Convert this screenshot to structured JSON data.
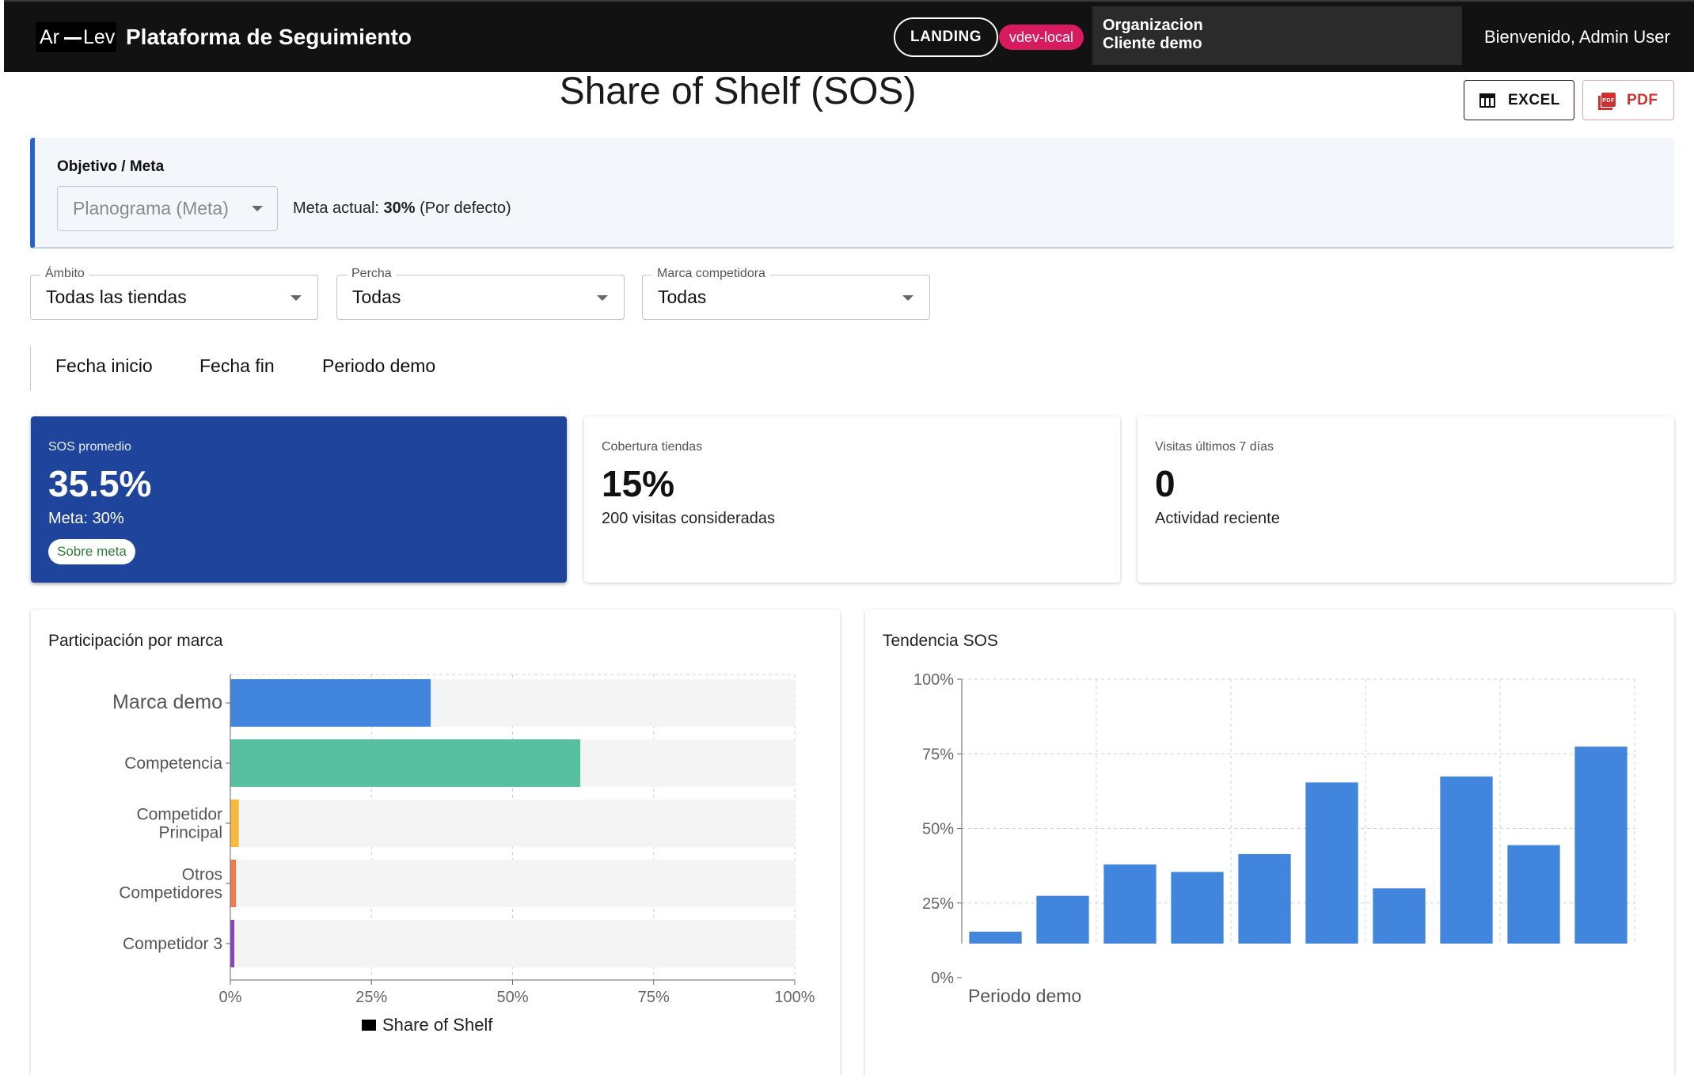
{
  "header": {
    "logo_left": "Ar",
    "logo_right": "Lev",
    "app_title": "Plataforma de Seguimiento",
    "landing_label": "LANDING",
    "env_label": "vdev-local",
    "org_line1": "Organizacion",
    "org_line2": "Cliente demo",
    "welcome": "Bienvenido, Admin User"
  },
  "page": {
    "title": "Share of Shelf (SOS)",
    "excel_label": "EXCEL",
    "pdf_label": "PDF"
  },
  "objective": {
    "label": "Objetivo / Meta",
    "select_value": "Planograma (Meta)",
    "meta_prefix": "Meta actual: ",
    "meta_value": "30%",
    "meta_suffix": " (Por defecto)"
  },
  "filters": {
    "scope": {
      "label": "Ámbito",
      "value": "Todas las tiendas"
    },
    "shelf": {
      "label": "Percha",
      "value": "Todas"
    },
    "brand": {
      "label": "Marca competidora",
      "value": "Todas"
    }
  },
  "date_tabs": [
    "Fecha inicio",
    "Fecha fin",
    "Periodo demo"
  ],
  "kpis": [
    {
      "label": "SOS promedio",
      "value": "35.5%",
      "sub": "Meta: 30%",
      "badge": "Sobre meta"
    },
    {
      "label": "Cobertura tiendas",
      "value": "15%",
      "sub": "200 visitas consideradas"
    },
    {
      "label": "Visitas últimos 7 días",
      "value": "0",
      "sub": "Actividad reciente"
    }
  ],
  "colors": {
    "accent": "#1f449b",
    "brand_bar": "#4285dc",
    "track": "#f4f4f4",
    "env_chip": "#d81b60"
  },
  "chart_data": [
    {
      "type": "bar",
      "orientation": "horizontal",
      "title": "Participación por marca",
      "categories": [
        "Marca demo",
        "Competencia",
        "Competidor Principal",
        "Otros Competidores",
        "Competidor 3"
      ],
      "category_lines": [
        [
          "Marca demo"
        ],
        [
          "Competencia"
        ],
        [
          "Competidor",
          "Principal"
        ],
        [
          "Otros",
          "Competidores"
        ],
        [
          "Competidor 3"
        ]
      ],
      "series": [
        {
          "name": "Share of Shelf",
          "values": [
            35.5,
            62,
            1.5,
            1,
            0.7
          ],
          "colors": [
            "#4285dc",
            "#57c0a0",
            "#f9b93c",
            "#ef7a4c",
            "#8e3fc4"
          ]
        }
      ],
      "xlim": [
        0,
        100
      ],
      "xticks": [
        "0%",
        "25%",
        "50%",
        "75%",
        "100%"
      ],
      "legend_label": "Share of Shelf",
      "legend": "bottom",
      "grid": true
    },
    {
      "type": "bar",
      "title": "Tendencia SOS",
      "values": [
        4,
        16,
        26.5,
        24,
        30,
        54,
        18.5,
        56,
        33,
        66
      ],
      "color": "#4285dc",
      "ylim": [
        0,
        100
      ],
      "yticks": [
        "0%",
        "25%",
        "50%",
        "75%",
        "100%"
      ],
      "xlabel": "Periodo demo",
      "grid": true
    }
  ]
}
